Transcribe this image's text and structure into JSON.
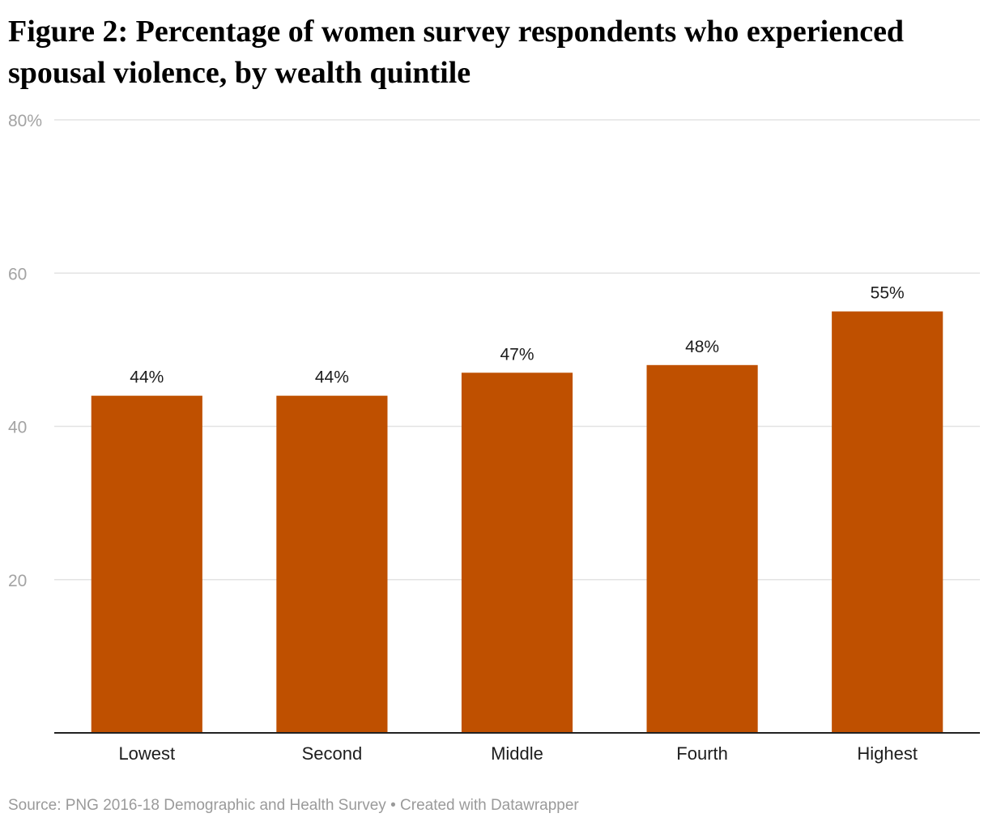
{
  "chart_data": {
    "type": "bar",
    "title": "Figure 2: Percentage of women survey respondents who experienced spousal violence, by wealth quintile",
    "categories": [
      "Lowest",
      "Second",
      "Middle",
      "Fourth",
      "Highest"
    ],
    "values": [
      44,
      44,
      47,
      48,
      55
    ],
    "value_labels": [
      "44%",
      "44%",
      "47%",
      "48%",
      "55%"
    ],
    "ylim": [
      0,
      80
    ],
    "yticks": [
      20,
      40,
      60,
      80
    ],
    "ytick_labels": [
      "20",
      "40",
      "60",
      "80%"
    ],
    "xlabel": "",
    "ylabel": "",
    "grid": true,
    "bar_color": "#bf5000",
    "source": "Source: PNG 2016-18 Demographic and Health Survey • Created with Datawrapper"
  }
}
